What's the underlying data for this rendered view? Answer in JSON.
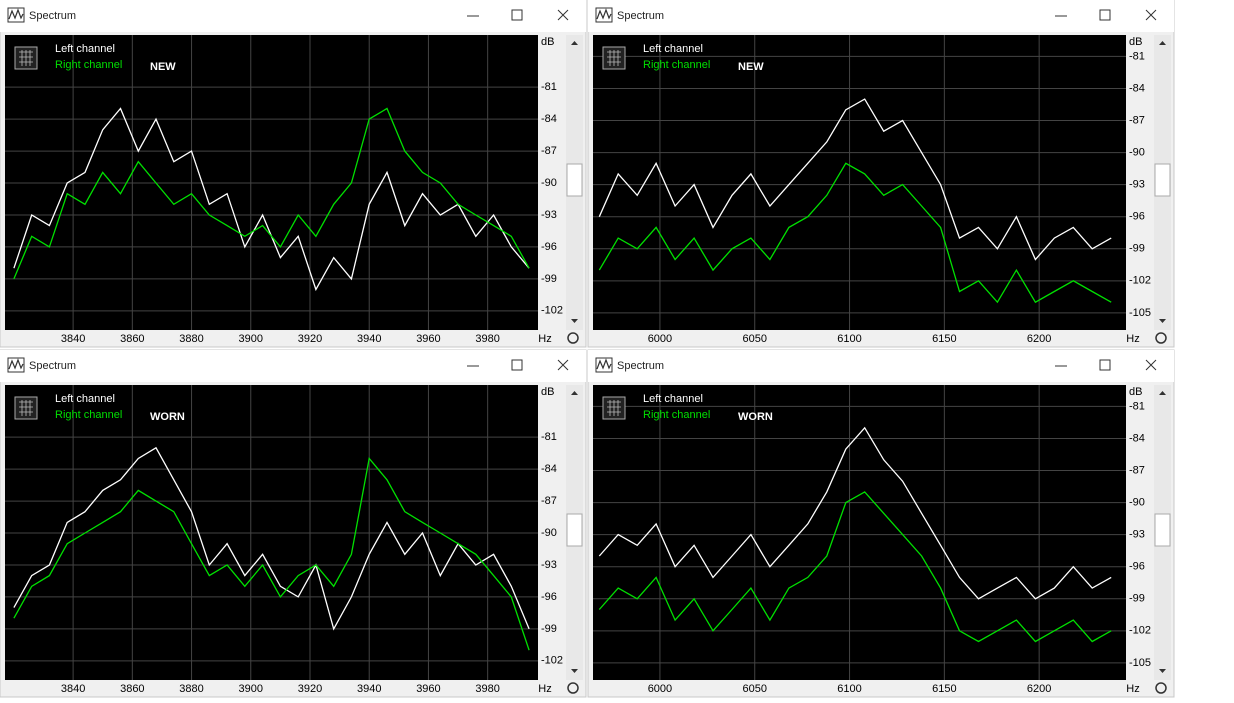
{
  "windows": [
    {
      "title": "Spectrum",
      "chart": {
        "type": "line",
        "label": "NEW",
        "xlabel": "Hz",
        "ylabel": "dB",
        "xlim": [
          3817,
          3997
        ],
        "ylim": [
          -103.8,
          -76.1
        ],
        "xticks": [
          3840,
          3860,
          3880,
          3900,
          3920,
          3940,
          3960,
          3980
        ],
        "yticks": [
          -81,
          -84,
          -87,
          -90,
          -93,
          -96,
          -99,
          -102
        ],
        "x": [
          3820,
          3826,
          3832,
          3838,
          3844,
          3850,
          3856,
          3862,
          3868,
          3874,
          3880,
          3886,
          3892,
          3898,
          3904,
          3910,
          3916,
          3922,
          3928,
          3934,
          3940,
          3946,
          3952,
          3958,
          3964,
          3970,
          3976,
          3982,
          3988,
          3994
        ],
        "series": [
          {
            "name": "Left channel",
            "color": "#ffffff",
            "values": [
              -98,
              -93,
              -94,
              -90,
              -89,
              -85,
              -83,
              -87,
              -84,
              -88,
              -87,
              -92,
              -91,
              -96,
              -93,
              -97,
              -95,
              -100,
              -97,
              -99,
              -92,
              -89,
              -94,
              -91,
              -93,
              -92,
              -95,
              -93,
              -96,
              -98
            ]
          },
          {
            "name": "Right channel",
            "color": "#00e000",
            "values": [
              -99,
              -95,
              -96,
              -91,
              -92,
              -89,
              -91,
              -88,
              -90,
              -92,
              -91,
              -93,
              -94,
              -95,
              -94,
              -96,
              -93,
              -95,
              -92,
              -90,
              -84,
              -83,
              -87,
              -89,
              -90,
              -92,
              -93,
              -94,
              -95,
              -98
            ]
          }
        ]
      }
    },
    {
      "title": "Spectrum",
      "chart": {
        "type": "line",
        "label": "NEW",
        "xlabel": "Hz",
        "ylabel": "dB",
        "xlim": [
          5964.7,
          6245.8
        ],
        "ylim": [
          -106.6,
          -79.0
        ],
        "xticks": [
          6000,
          6050,
          6100,
          6150,
          6200
        ],
        "yticks": [
          -81,
          -84,
          -87,
          -90,
          -93,
          -96,
          -99,
          -102,
          -105
        ],
        "x": [
          5968,
          5978,
          5988,
          5998,
          6008,
          6018,
          6028,
          6038,
          6048,
          6058,
          6068,
          6078,
          6088,
          6098,
          6108,
          6118,
          6128,
          6138,
          6148,
          6158,
          6168,
          6178,
          6188,
          6198,
          6208,
          6218,
          6228,
          6238
        ],
        "series": [
          {
            "name": "Left channel",
            "color": "#ffffff",
            "values": [
              -96,
              -92,
              -94,
              -91,
              -95,
              -93,
              -97,
              -94,
              -92,
              -95,
              -93,
              -91,
              -89,
              -86,
              -85,
              -88,
              -87,
              -90,
              -93,
              -98,
              -97,
              -99,
              -96,
              -100,
              -98,
              -97,
              -99,
              -98
            ]
          },
          {
            "name": "Right channel",
            "color": "#00e000",
            "values": [
              -101,
              -98,
              -99,
              -97,
              -100,
              -98,
              -101,
              -99,
              -98,
              -100,
              -97,
              -96,
              -94,
              -91,
              -92,
              -94,
              -93,
              -95,
              -97,
              -103,
              -102,
              -104,
              -101,
              -104,
              -103,
              -102,
              -103,
              -104
            ]
          }
        ]
      }
    },
    {
      "title": "Spectrum",
      "chart": {
        "type": "line",
        "label": "WORN",
        "xlabel": "Hz",
        "ylabel": "dB",
        "xlim": [
          3817,
          3997
        ],
        "ylim": [
          -103.8,
          -76.1
        ],
        "xticks": [
          3840,
          3860,
          3880,
          3900,
          3920,
          3940,
          3960,
          3980
        ],
        "yticks": [
          -81,
          -84,
          -87,
          -90,
          -93,
          -96,
          -99,
          -102
        ],
        "x": [
          3820,
          3826,
          3832,
          3838,
          3844,
          3850,
          3856,
          3862,
          3868,
          3874,
          3880,
          3886,
          3892,
          3898,
          3904,
          3910,
          3916,
          3922,
          3928,
          3934,
          3940,
          3946,
          3952,
          3958,
          3964,
          3970,
          3976,
          3982,
          3988,
          3994
        ],
        "series": [
          {
            "name": "Left channel",
            "color": "#ffffff",
            "values": [
              -97,
              -94,
              -93,
              -89,
              -88,
              -86,
              -85,
              -83,
              -82,
              -85,
              -88,
              -93,
              -91,
              -94,
              -92,
              -95,
              -96,
              -93,
              -99,
              -96,
              -92,
              -89,
              -92,
              -90,
              -94,
              -91,
              -93,
              -92,
              -95,
              -99
            ]
          },
          {
            "name": "Right channel",
            "color": "#00e000",
            "values": [
              -98,
              -95,
              -94,
              -91,
              -90,
              -89,
              -88,
              -86,
              -87,
              -88,
              -91,
              -94,
              -93,
              -95,
              -93,
              -96,
              -94,
              -93,
              -95,
              -92,
              -83,
              -85,
              -88,
              -89,
              -90,
              -91,
              -92,
              -94,
              -96,
              -101
            ]
          }
        ]
      }
    },
    {
      "title": "Spectrum",
      "chart": {
        "type": "line",
        "label": "WORN",
        "xlabel": "Hz",
        "ylabel": "dB",
        "xlim": [
          5964.7,
          6245.8
        ],
        "ylim": [
          -106.6,
          -79.0
        ],
        "xticks": [
          6000,
          6050,
          6100,
          6150,
          6200
        ],
        "yticks": [
          -81,
          -84,
          -87,
          -90,
          -93,
          -96,
          -99,
          -102,
          -105
        ],
        "x": [
          5968,
          5978,
          5988,
          5998,
          6008,
          6018,
          6028,
          6038,
          6048,
          6058,
          6068,
          6078,
          6088,
          6098,
          6108,
          6118,
          6128,
          6138,
          6148,
          6158,
          6168,
          6178,
          6188,
          6198,
          6208,
          6218,
          6228,
          6238
        ],
        "series": [
          {
            "name": "Left channel",
            "color": "#ffffff",
            "values": [
              -95,
              -93,
              -94,
              -92,
              -96,
              -94,
              -97,
              -95,
              -93,
              -96,
              -94,
              -92,
              -89,
              -85,
              -83,
              -86,
              -88,
              -91,
              -94,
              -97,
              -99,
              -98,
              -97,
              -99,
              -98,
              -96,
              -98,
              -97
            ]
          },
          {
            "name": "Right channel",
            "color": "#00e000",
            "values": [
              -100,
              -98,
              -99,
              -97,
              -101,
              -99,
              -102,
              -100,
              -98,
              -101,
              -98,
              -97,
              -95,
              -90,
              -89,
              -91,
              -93,
              -95,
              -98,
              -102,
              -103,
              -102,
              -101,
              -103,
              -102,
              -101,
              -103,
              -102
            ]
          }
        ]
      }
    }
  ]
}
